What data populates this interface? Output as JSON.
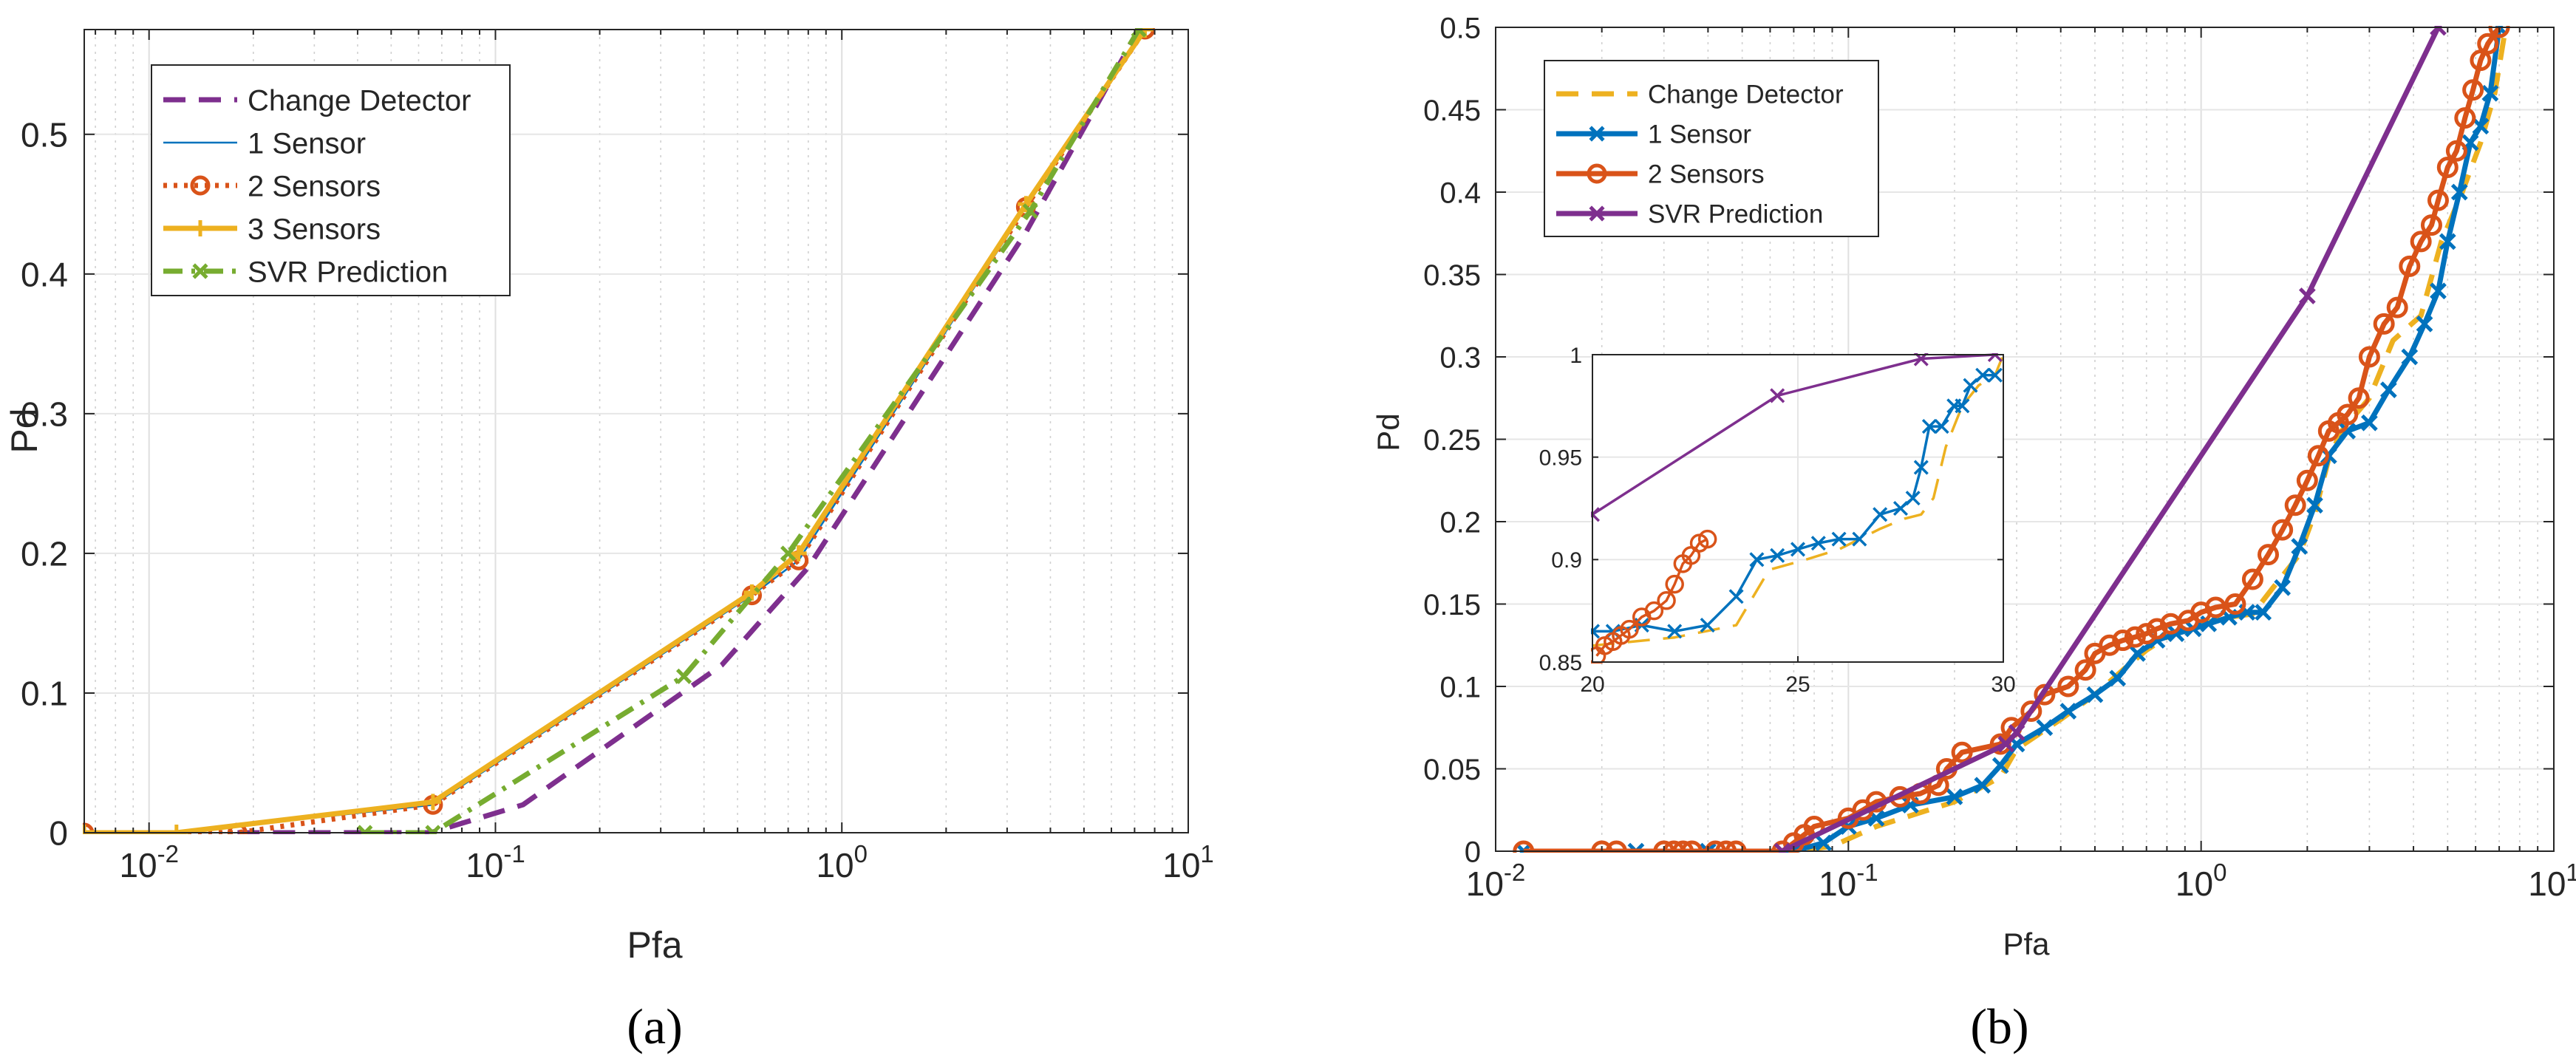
{
  "chart_data": [
    {
      "type": "line",
      "caption": "(a)",
      "xlabel": "Pfa",
      "ylabel": "Pd",
      "xscale": "log",
      "xlim": [
        0.0065,
        10
      ],
      "ylim": [
        0,
        0.575
      ],
      "xticks": [
        0.01,
        0.1,
        1,
        10
      ],
      "xtick_bases": [
        "10",
        "10",
        "10",
        "10"
      ],
      "xtick_exps": [
        "-2",
        "-1",
        "0",
        "1"
      ],
      "yticks": [
        0,
        0.1,
        0.2,
        0.3,
        0.4,
        0.5
      ],
      "ytick_labels": [
        "0",
        "0.1",
        "0.2",
        "0.3",
        "0.4",
        "0.5"
      ],
      "grid": true,
      "legend_position": "top-left",
      "series": [
        {
          "name": "Change Detector",
          "color": "#7E2F8E",
          "style": "dashed",
          "marker": "none",
          "x": [
            0.018,
            0.065,
            0.12,
            0.45,
            0.8,
            3.4,
            7.2
          ],
          "y": [
            0,
            0,
            0.02,
            0.12,
            0.19,
            0.43,
            0.575
          ]
        },
        {
          "name": "1 Sensor",
          "color": "#0072BD",
          "style": "thin",
          "marker": "none",
          "x": [
            0.0065,
            0.012,
            0.066,
            0.55,
            0.75,
            3.4,
            7.5
          ],
          "y": [
            0,
            0,
            0.02,
            0.17,
            0.195,
            0.448,
            0.575
          ]
        },
        {
          "name": "2 Sensors",
          "color": "#D95319",
          "style": "dotted",
          "marker": "circle",
          "x": [
            0.0065,
            0.018,
            0.066,
            0.55,
            0.75,
            3.4,
            7.5
          ],
          "y": [
            0,
            0,
            0.02,
            0.17,
            0.195,
            0.448,
            0.575
          ]
        },
        {
          "name": "3 Sensors",
          "color": "#EDB120",
          "style": "solid",
          "marker": "plus",
          "x": [
            0.0065,
            0.012,
            0.066,
            0.55,
            0.75,
            3.4,
            7.5
          ],
          "y": [
            0,
            0,
            0.022,
            0.172,
            0.2,
            0.45,
            0.575
          ]
        },
        {
          "name": "SVR Prediction",
          "color": "#77AC30",
          "style": "dashdot",
          "marker": "x",
          "x": [
            0.042,
            0.066,
            0.35,
            0.7,
            3.5,
            7.2
          ],
          "y": [
            0,
            0,
            0.112,
            0.2,
            0.445,
            0.575
          ]
        }
      ]
    },
    {
      "type": "line",
      "caption": "(b)",
      "xlabel": "Pfa",
      "ylabel": "Pd",
      "xscale": "log",
      "xlim": [
        0.01,
        10
      ],
      "ylim": [
        0,
        0.5
      ],
      "xticks": [
        0.01,
        0.1,
        1,
        10
      ],
      "xtick_bases": [
        "10",
        "10",
        "10",
        "10"
      ],
      "xtick_exps": [
        "-2",
        "-1",
        "0",
        "1"
      ],
      "yticks": [
        0,
        0.05,
        0.1,
        0.15,
        0.2,
        0.25,
        0.3,
        0.35,
        0.4,
        0.45,
        0.5
      ],
      "ytick_labels": [
        "0",
        "0.05",
        "0.1",
        "0.15",
        "0.2",
        "0.25",
        "0.3",
        "0.35",
        "0.4",
        "0.45",
        "0.5"
      ],
      "grid": true,
      "legend_position": "top-left",
      "series": [
        {
          "name": "Change Detector",
          "color": "#EDB120",
          "style": "dashed",
          "marker": "none",
          "x": [
            0.012,
            0.07,
            0.09,
            0.12,
            0.2,
            0.27,
            0.3,
            0.4,
            0.5,
            0.6,
            0.7,
            0.8,
            0.9,
            1.0,
            1.2,
            1.4,
            1.6,
            1.9,
            2.1,
            2.3,
            2.5,
            3.0,
            3.5,
            4.2,
            4.8,
            5.5,
            6.2,
            6.8,
            7.3
          ],
          "y": [
            0,
            0,
            0.003,
            0.015,
            0.03,
            0.045,
            0.062,
            0.08,
            0.095,
            0.11,
            0.122,
            0.13,
            0.135,
            0.138,
            0.142,
            0.144,
            0.16,
            0.18,
            0.205,
            0.238,
            0.255,
            0.275,
            0.31,
            0.325,
            0.37,
            0.4,
            0.43,
            0.46,
            0.5
          ]
        },
        {
          "name": "1 Sensor",
          "color": "#0072BD",
          "style": "solid",
          "marker": "x",
          "x": [
            0.012,
            0.025,
            0.04,
            0.07,
            0.085,
            0.1,
            0.12,
            0.15,
            0.2,
            0.24,
            0.27,
            0.3,
            0.36,
            0.42,
            0.5,
            0.58,
            0.66,
            0.75,
            0.85,
            0.95,
            1.05,
            1.2,
            1.35,
            1.5,
            1.7,
            1.9,
            2.1,
            2.3,
            2.6,
            3.0,
            3.4,
            3.9,
            4.3,
            4.7,
            5.0,
            5.4,
            5.8,
            6.2,
            6.6,
            7.0
          ],
          "y": [
            0,
            0,
            0,
            0,
            0.005,
            0.015,
            0.02,
            0.028,
            0.033,
            0.04,
            0.052,
            0.065,
            0.075,
            0.085,
            0.095,
            0.105,
            0.12,
            0.128,
            0.132,
            0.135,
            0.138,
            0.142,
            0.145,
            0.145,
            0.16,
            0.185,
            0.21,
            0.24,
            0.255,
            0.26,
            0.28,
            0.3,
            0.32,
            0.34,
            0.37,
            0.4,
            0.43,
            0.44,
            0.46,
            0.5
          ]
        },
        {
          "name": "2 Sensors",
          "color": "#D95319",
          "style": "solid",
          "marker": "circle",
          "x": [
            0.012,
            0.02,
            0.022,
            0.03,
            0.032,
            0.034,
            0.036,
            0.042,
            0.045,
            0.048,
            0.065,
            0.07,
            0.075,
            0.08,
            0.1,
            0.11,
            0.12,
            0.14,
            0.16,
            0.18,
            0.19,
            0.21,
            0.27,
            0.29,
            0.33,
            0.36,
            0.42,
            0.47,
            0.5,
            0.55,
            0.6,
            0.65,
            0.7,
            0.75,
            0.82,
            0.92,
            1.0,
            1.1,
            1.25,
            1.4,
            1.55,
            1.7,
            1.85,
            2.0,
            2.15,
            2.3,
            2.45,
            2.6,
            2.8,
            3.0,
            3.3,
            3.6,
            3.9,
            4.2,
            4.5,
            4.7,
            5.0,
            5.3,
            5.6,
            5.9,
            6.2,
            6.5,
            7.0
          ],
          "y": [
            0,
            0,
            0,
            0,
            0,
            0,
            0,
            0,
            0,
            0,
            0,
            0.005,
            0.01,
            0.015,
            0.02,
            0.025,
            0.03,
            0.033,
            0.035,
            0.04,
            0.05,
            0.06,
            0.065,
            0.075,
            0.085,
            0.095,
            0.1,
            0.11,
            0.12,
            0.125,
            0.128,
            0.13,
            0.132,
            0.135,
            0.138,
            0.14,
            0.145,
            0.148,
            0.15,
            0.165,
            0.18,
            0.195,
            0.21,
            0.225,
            0.24,
            0.255,
            0.26,
            0.265,
            0.275,
            0.3,
            0.32,
            0.33,
            0.355,
            0.37,
            0.38,
            0.395,
            0.415,
            0.425,
            0.445,
            0.462,
            0.48,
            0.49,
            0.5
          ]
        },
        {
          "name": "SVR Prediction",
          "color": "#7E2F8E",
          "style": "solid",
          "marker": "x",
          "x": [
            0.065,
            0.28,
            0.3,
            2.0,
            4.7
          ],
          "y": [
            0,
            0.065,
            0.072,
            0.337,
            0.5
          ]
        }
      ],
      "inset": {
        "xlim": [
          20,
          30
        ],
        "ylim": [
          0.85,
          1
        ],
        "xticks": [
          20,
          25,
          30
        ],
        "xtick_labels": [
          "20",
          "25",
          "30"
        ],
        "yticks": [
          0.85,
          0.9,
          0.95,
          1
        ],
        "ytick_labels": [
          "0.85",
          "0.9",
          "0.95",
          "1"
        ],
        "series": [
          {
            "name": "Change Detector",
            "color": "#EDB120",
            "style": "dashed",
            "marker": "none",
            "x": [
              20.0,
              22.0,
              23.5,
              24.3,
              25.2,
              26.0,
              27.0,
              27.6,
              28.0,
              28.3,
              28.6,
              29.0,
              29.4,
              29.8,
              30.0
            ],
            "y": [
              0.858,
              0.862,
              0.868,
              0.895,
              0.9,
              0.905,
              0.915,
              0.92,
              0.922,
              0.93,
              0.955,
              0.975,
              0.985,
              0.99,
              1.0
            ]
          },
          {
            "name": "1 Sensor",
            "color": "#0072BD",
            "style": "solid",
            "marker": "x",
            "x": [
              20.0,
              20.5,
              21.2,
              22.0,
              22.8,
              23.5,
              24.0,
              24.5,
              25.0,
              25.5,
              26.0,
              26.5,
              27.0,
              27.5,
              27.8,
              28.0,
              28.2,
              28.5,
              28.8,
              29.0,
              29.2,
              29.5,
              29.8
            ],
            "y": [
              0.865,
              0.865,
              0.868,
              0.865,
              0.868,
              0.882,
              0.9,
              0.902,
              0.905,
              0.908,
              0.91,
              0.91,
              0.922,
              0.925,
              0.93,
              0.945,
              0.965,
              0.965,
              0.975,
              0.975,
              0.985,
              0.99,
              0.99
            ]
          },
          {
            "name": "2 Sensors",
            "color": "#D95319",
            "style": "solid",
            "marker": "circle",
            "x": [
              20.1,
              20.3,
              20.5,
              20.7,
              20.9,
              21.2,
              21.5,
              21.8,
              22.0,
              22.2,
              22.4,
              22.6,
              22.8
            ],
            "y": [
              0.853,
              0.858,
              0.86,
              0.863,
              0.866,
              0.872,
              0.875,
              0.88,
              0.888,
              0.898,
              0.902,
              0.908,
              0.91
            ]
          },
          {
            "name": "SVR Prediction",
            "color": "#7E2F8E",
            "style": "solid",
            "marker": "x",
            "x": [
              20.0,
              24.5,
              28.0,
              29.8
            ],
            "y": [
              0.922,
              0.98,
              0.998,
              1.0
            ]
          }
        ]
      }
    }
  ]
}
